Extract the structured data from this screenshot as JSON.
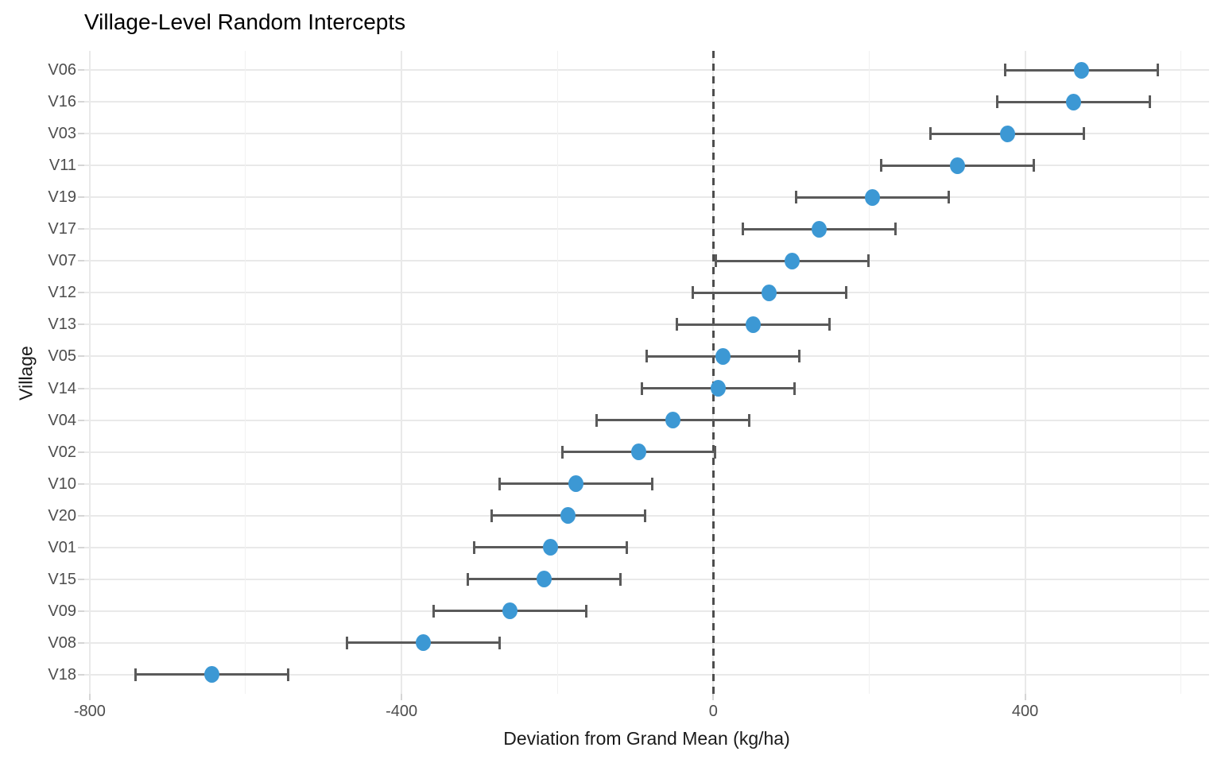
{
  "chart_data": {
    "type": "scatter",
    "variant": "dot-plot-with-horizontal-error-bars",
    "title": "Village-Level Random Intercepts",
    "xlabel": "Deviation from Grand Mean (kg/ha)",
    "ylabel": "Village",
    "xlim": [
      -807,
      636
    ],
    "x_major_ticks": [
      -800,
      -400,
      0,
      400
    ],
    "x_tick_labels": [
      "-800",
      "-400",
      "0",
      "400"
    ],
    "x_minor_gridlines": [
      -600,
      -200,
      200,
      600
    ],
    "reference_line": {
      "x": 0,
      "style": "dashed"
    },
    "grid": true,
    "legend": false,
    "rows": [
      {
        "village": "V06",
        "estimate": 472,
        "lower": 374,
        "upper": 570
      },
      {
        "village": "V16",
        "estimate": 462,
        "lower": 364,
        "upper": 560
      },
      {
        "village": "V03",
        "estimate": 377,
        "lower": 279,
        "upper": 475
      },
      {
        "village": "V11",
        "estimate": 313,
        "lower": 215,
        "upper": 411
      },
      {
        "village": "V19",
        "estimate": 204,
        "lower": 106,
        "upper": 302
      },
      {
        "village": "V17",
        "estimate": 136,
        "lower": 38,
        "upper": 234
      },
      {
        "village": "V07",
        "estimate": 101,
        "lower": 3,
        "upper": 199
      },
      {
        "village": "V12",
        "estimate": 72,
        "lower": -26,
        "upper": 170
      },
      {
        "village": "V13",
        "estimate": 51,
        "lower": -47,
        "upper": 149
      },
      {
        "village": "V05",
        "estimate": 12,
        "lower": -86,
        "upper": 110
      },
      {
        "village": "V14",
        "estimate": 6,
        "lower": -92,
        "upper": 104
      },
      {
        "village": "V04",
        "estimate": -52,
        "lower": -150,
        "upper": 46
      },
      {
        "village": "V02",
        "estimate": -96,
        "lower": -194,
        "upper": 2
      },
      {
        "village": "V10",
        "estimate": -176,
        "lower": -274,
        "upper": -78
      },
      {
        "village": "V20",
        "estimate": -186,
        "lower": -284,
        "upper": -88
      },
      {
        "village": "V01",
        "estimate": -209,
        "lower": -307,
        "upper": -111
      },
      {
        "village": "V15",
        "estimate": -217,
        "lower": -315,
        "upper": -119
      },
      {
        "village": "V09",
        "estimate": -261,
        "lower": -359,
        "upper": -163
      },
      {
        "village": "V08",
        "estimate": -372,
        "lower": -470,
        "upper": -274
      },
      {
        "village": "V18",
        "estimate": -643,
        "lower": -741,
        "upper": -545
      }
    ],
    "colors": {
      "point": "#3c98d4",
      "error_bar": "#5a5a5a",
      "reference_line": "#4d4d4d",
      "grid_major": "#e9e9e9",
      "grid_minor": "#f1f1f1",
      "axis_text": "#4d4d4d",
      "title_text": "#000000",
      "axis_title_text": "#1a1a1a",
      "tick_mark": "#d5d5d5",
      "background": "#ffffff"
    }
  }
}
